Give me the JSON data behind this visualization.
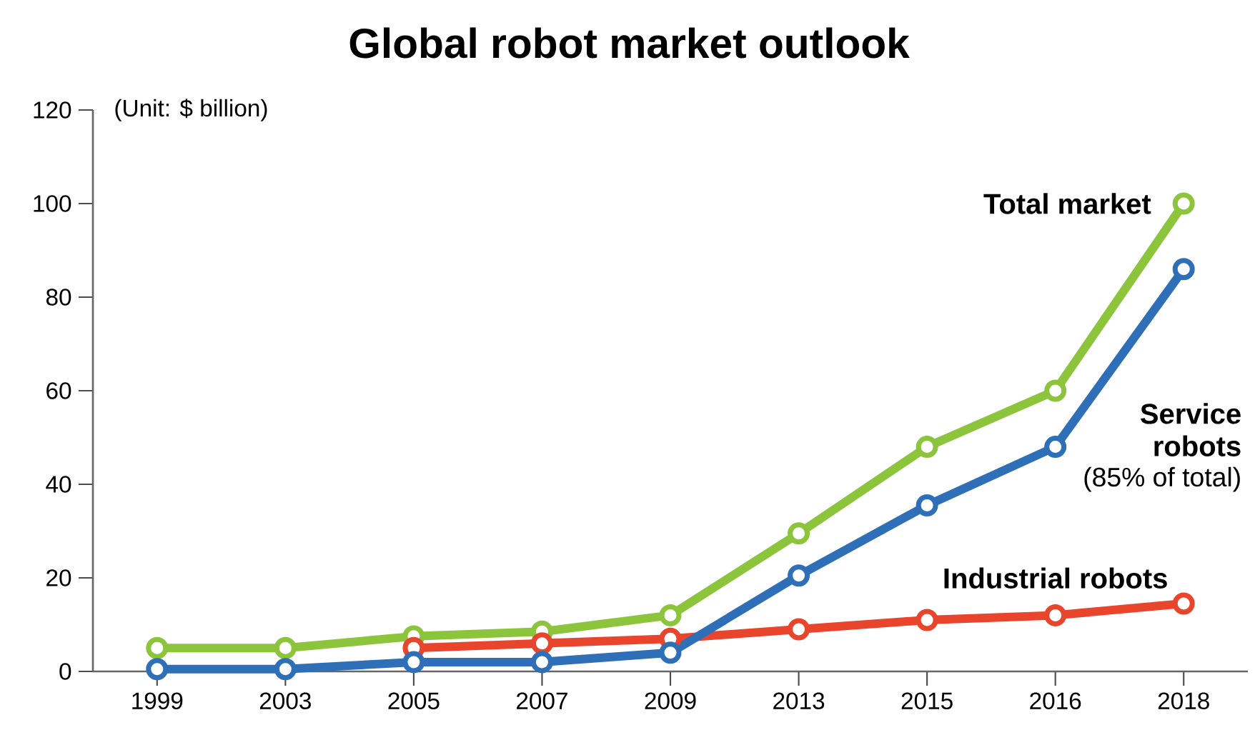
{
  "chart_data": {
    "type": "line",
    "title": "Global robot market outlook",
    "ylabel": "(Unit: $ billion)",
    "categories": [
      "1999",
      "2003",
      "2005",
      "2007",
      "2009",
      "2013",
      "2015",
      "2016",
      "2018"
    ],
    "series": [
      {
        "name": "Total market",
        "color": "#8cc43c",
        "values": [
          5,
          5,
          7.5,
          8.5,
          12,
          29.5,
          48,
          60,
          100
        ]
      },
      {
        "name": "Industrial robots",
        "color": "#e8452c",
        "values": [
          null,
          null,
          5,
          6,
          7,
          9,
          11,
          12,
          14.5
        ]
      },
      {
        "name": "Service robots",
        "color": "#2e6fb7",
        "values": [
          0.5,
          0.5,
          2,
          2,
          4,
          20.5,
          35.5,
          48,
          86
        ]
      }
    ],
    "annotations": [
      "(85% of total)"
    ],
    "ylim": [
      0,
      120
    ],
    "yticks": [
      0,
      20,
      40,
      60,
      80,
      100,
      120
    ],
    "marker": "circle"
  }
}
